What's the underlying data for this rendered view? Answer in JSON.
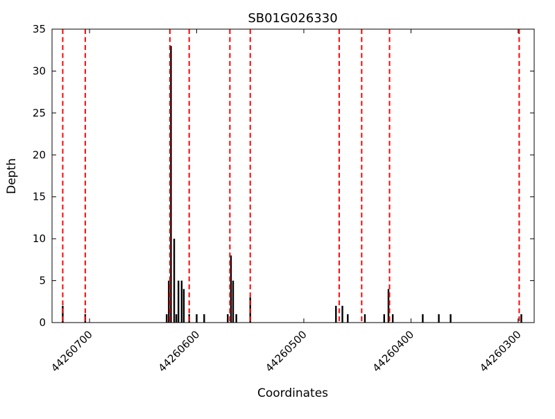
{
  "chart_data": {
    "type": "bar",
    "title": "SB01G026330",
    "xlabel": "Coordinates",
    "ylabel": "Depth",
    "x_axis": {
      "min": 44260285,
      "max": 44260735,
      "reversed": true,
      "ticks": [
        44260700,
        44260600,
        44260500,
        44260400,
        44260300
      ]
    },
    "y_axis": {
      "min": 0,
      "max": 35,
      "ticks": [
        0,
        5,
        10,
        15,
        20,
        25,
        30,
        35
      ]
    },
    "grid": false,
    "legend": "none",
    "bar_color": "#000000",
    "marker_line_color": "#ff0000",
    "marker_line_style": "dashed",
    "bars": [
      [
        44260725,
        2
      ],
      [
        44260704,
        1
      ],
      [
        44260628,
        1
      ],
      [
        44260626,
        5
      ],
      [
        44260624,
        33
      ],
      [
        44260621,
        10
      ],
      [
        44260619,
        1
      ],
      [
        44260617,
        5
      ],
      [
        44260614,
        5
      ],
      [
        44260612,
        4
      ],
      [
        44260607,
        1
      ],
      [
        44260600,
        1
      ],
      [
        44260593,
        1
      ],
      [
        44260571,
        1
      ],
      [
        44260568,
        8
      ],
      [
        44260566,
        5
      ],
      [
        44260563,
        1
      ],
      [
        44260550,
        3
      ],
      [
        44260470,
        2
      ],
      [
        44260464,
        2
      ],
      [
        44260459,
        1
      ],
      [
        44260443,
        1
      ],
      [
        44260425,
        1
      ],
      [
        44260421,
        4
      ],
      [
        44260417,
        1
      ],
      [
        44260389,
        1
      ],
      [
        44260374,
        1
      ],
      [
        44260363,
        1
      ],
      [
        44260297,
        1
      ]
    ],
    "marker_lines": [
      44260725,
      44260704,
      44260625,
      44260607,
      44260569,
      44260550,
      44260467,
      44260446,
      44260420,
      44260299
    ]
  }
}
